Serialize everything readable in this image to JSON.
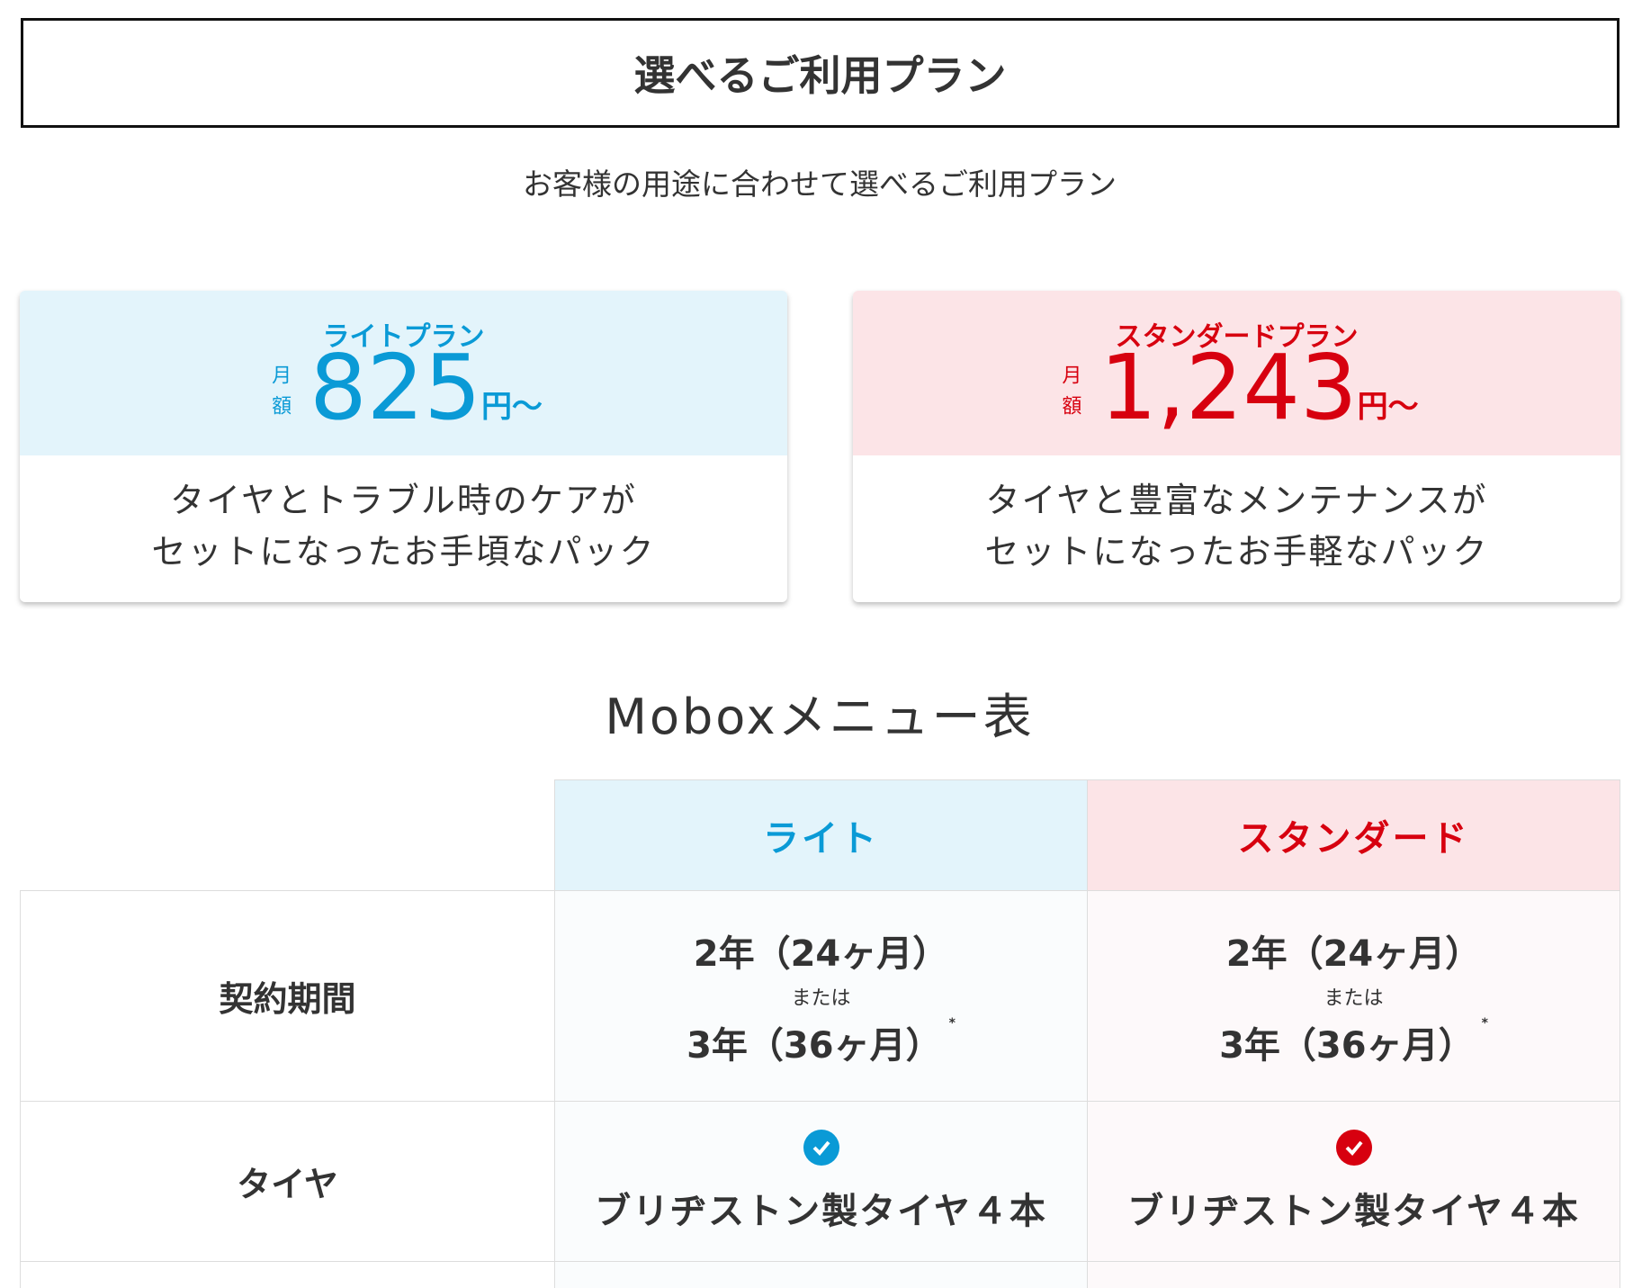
{
  "header": {
    "title": "選べるご利用プラン",
    "subtitle": "お客様の用途に合わせて選べるご利用プラン"
  },
  "plans": [
    {
      "name": "ライトプラン",
      "price_prefix": "月額",
      "price": "825",
      "price_suffix": "円〜",
      "description": [
        "タイヤとトラブル時のケアが",
        "セットになったお手頃なパック"
      ]
    },
    {
      "name": "スタンダードプラン",
      "price_prefix": "月額",
      "price": "1,243",
      "price_suffix": "円〜",
      "description": [
        "タイヤと豊富なメンテナンスが",
        "セットになったお手軽なパック"
      ]
    }
  ],
  "menu": {
    "title": "Moboxメニュー表",
    "columns": [
      "ライト",
      "スタンダード"
    ],
    "rows": [
      {
        "label": "契約期間",
        "cells": [
          [
            "2年（24ヶ月）",
            "または",
            "3年（36ヶ月）",
            "*"
          ],
          [
            "2年（24ヶ月）",
            "または",
            "3年（36ヶ月）",
            "*"
          ]
        ]
      },
      {
        "label": "タイヤ",
        "cells": [
          [
            "ブリヂストン製タイヤ４本"
          ],
          [
            "ブリヂストン製タイヤ４本"
          ]
        ]
      }
    ]
  }
}
